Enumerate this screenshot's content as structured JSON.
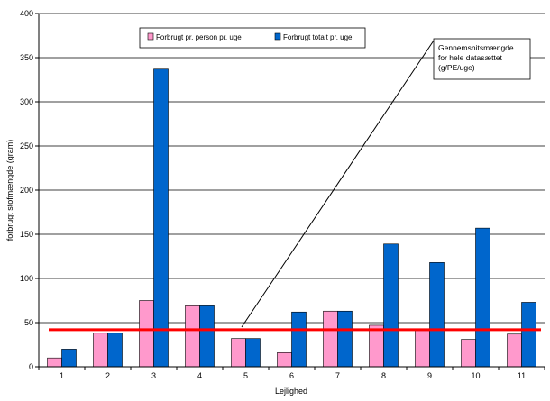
{
  "chart_data": {
    "type": "bar",
    "title": "",
    "xlabel": "Lejlighed",
    "ylabel": "forbrugt stofmængde (gram)",
    "ylim": [
      0,
      400
    ],
    "yticks": [
      0,
      50,
      100,
      150,
      200,
      250,
      300,
      350,
      400
    ],
    "grid": true,
    "legend_position": "top-left",
    "categories": [
      "1",
      "2",
      "3",
      "4",
      "5",
      "6",
      "7",
      "8",
      "9",
      "10",
      "11"
    ],
    "series": [
      {
        "name": "Forbrugt pr. person pr. uge",
        "color": "#FF99CC",
        "values": [
          10,
          38,
          75,
          69,
          32,
          16,
          63,
          47,
          41,
          31,
          37
        ]
      },
      {
        "name": "Forbrugt totalt pr. uge",
        "color": "#0066CC",
        "values": [
          20,
          38,
          337,
          69,
          32,
          62,
          63,
          139,
          118,
          157,
          73
        ]
      }
    ],
    "reference_line": {
      "value": 42,
      "color": "#FF0000"
    },
    "annotation": {
      "lines": [
        "Gennemsnitsmængde",
        "for hele datasættet",
        "(g/PE/uge)"
      ]
    }
  }
}
